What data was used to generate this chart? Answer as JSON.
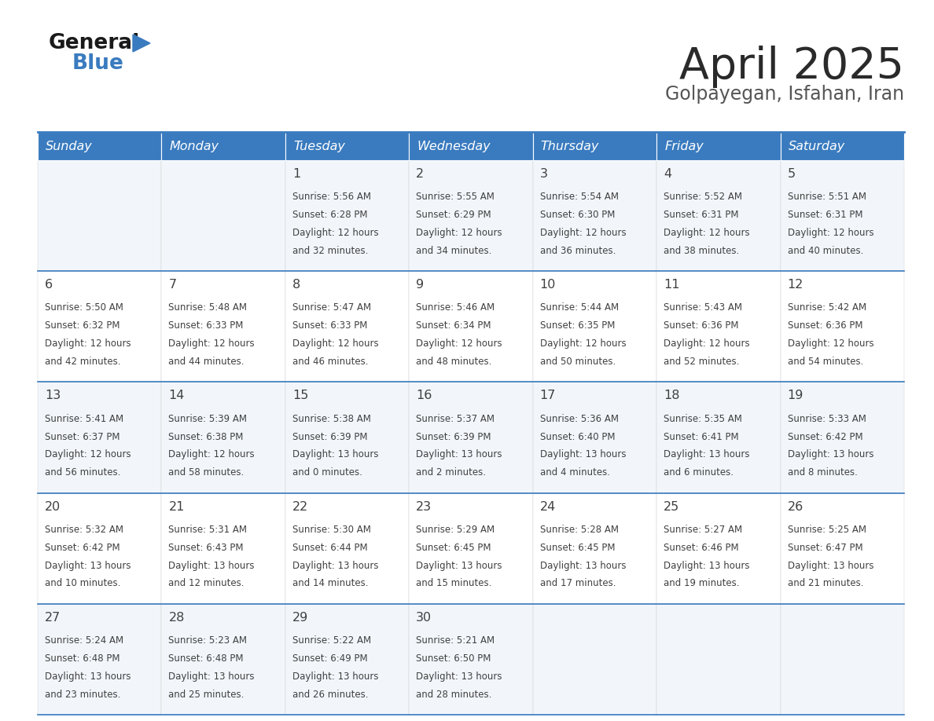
{
  "title": "April 2025",
  "subtitle": "Golpayegan, Isfahan, Iran",
  "days_of_week": [
    "Sunday",
    "Monday",
    "Tuesday",
    "Wednesday",
    "Thursday",
    "Friday",
    "Saturday"
  ],
  "header_bg": "#3a7bbf",
  "header_text": "#ffffff",
  "border_color": "#3a7bbf",
  "text_color": "#404040",
  "title_color": "#2a2a2a",
  "subtitle_color": "#555555",
  "logo_black": "#1a1a1a",
  "logo_blue": "#3a7bbf",
  "row_bg_odd": "#f2f6fb",
  "row_bg_even": "#ffffff",
  "calendar": [
    [
      {
        "day": "",
        "sunrise": "",
        "sunset": "",
        "daylight": ""
      },
      {
        "day": "",
        "sunrise": "",
        "sunset": "",
        "daylight": ""
      },
      {
        "day": "1",
        "sunrise": "5:56 AM",
        "sunset": "6:28 PM",
        "daylight": "12 hours and 32 minutes."
      },
      {
        "day": "2",
        "sunrise": "5:55 AM",
        "sunset": "6:29 PM",
        "daylight": "12 hours and 34 minutes."
      },
      {
        "day": "3",
        "sunrise": "5:54 AM",
        "sunset": "6:30 PM",
        "daylight": "12 hours and 36 minutes."
      },
      {
        "day": "4",
        "sunrise": "5:52 AM",
        "sunset": "6:31 PM",
        "daylight": "12 hours and 38 minutes."
      },
      {
        "day": "5",
        "sunrise": "5:51 AM",
        "sunset": "6:31 PM",
        "daylight": "12 hours and 40 minutes."
      }
    ],
    [
      {
        "day": "6",
        "sunrise": "5:50 AM",
        "sunset": "6:32 PM",
        "daylight": "12 hours and 42 minutes."
      },
      {
        "day": "7",
        "sunrise": "5:48 AM",
        "sunset": "6:33 PM",
        "daylight": "12 hours and 44 minutes."
      },
      {
        "day": "8",
        "sunrise": "5:47 AM",
        "sunset": "6:33 PM",
        "daylight": "12 hours and 46 minutes."
      },
      {
        "day": "9",
        "sunrise": "5:46 AM",
        "sunset": "6:34 PM",
        "daylight": "12 hours and 48 minutes."
      },
      {
        "day": "10",
        "sunrise": "5:44 AM",
        "sunset": "6:35 PM",
        "daylight": "12 hours and 50 minutes."
      },
      {
        "day": "11",
        "sunrise": "5:43 AM",
        "sunset": "6:36 PM",
        "daylight": "12 hours and 52 minutes."
      },
      {
        "day": "12",
        "sunrise": "5:42 AM",
        "sunset": "6:36 PM",
        "daylight": "12 hours and 54 minutes."
      }
    ],
    [
      {
        "day": "13",
        "sunrise": "5:41 AM",
        "sunset": "6:37 PM",
        "daylight": "12 hours and 56 minutes."
      },
      {
        "day": "14",
        "sunrise": "5:39 AM",
        "sunset": "6:38 PM",
        "daylight": "12 hours and 58 minutes."
      },
      {
        "day": "15",
        "sunrise": "5:38 AM",
        "sunset": "6:39 PM",
        "daylight": "13 hours and 0 minutes."
      },
      {
        "day": "16",
        "sunrise": "5:37 AM",
        "sunset": "6:39 PM",
        "daylight": "13 hours and 2 minutes."
      },
      {
        "day": "17",
        "sunrise": "5:36 AM",
        "sunset": "6:40 PM",
        "daylight": "13 hours and 4 minutes."
      },
      {
        "day": "18",
        "sunrise": "5:35 AM",
        "sunset": "6:41 PM",
        "daylight": "13 hours and 6 minutes."
      },
      {
        "day": "19",
        "sunrise": "5:33 AM",
        "sunset": "6:42 PM",
        "daylight": "13 hours and 8 minutes."
      }
    ],
    [
      {
        "day": "20",
        "sunrise": "5:32 AM",
        "sunset": "6:42 PM",
        "daylight": "13 hours and 10 minutes."
      },
      {
        "day": "21",
        "sunrise": "5:31 AM",
        "sunset": "6:43 PM",
        "daylight": "13 hours and 12 minutes."
      },
      {
        "day": "22",
        "sunrise": "5:30 AM",
        "sunset": "6:44 PM",
        "daylight": "13 hours and 14 minutes."
      },
      {
        "day": "23",
        "sunrise": "5:29 AM",
        "sunset": "6:45 PM",
        "daylight": "13 hours and 15 minutes."
      },
      {
        "day": "24",
        "sunrise": "5:28 AM",
        "sunset": "6:45 PM",
        "daylight": "13 hours and 17 minutes."
      },
      {
        "day": "25",
        "sunrise": "5:27 AM",
        "sunset": "6:46 PM",
        "daylight": "13 hours and 19 minutes."
      },
      {
        "day": "26",
        "sunrise": "5:25 AM",
        "sunset": "6:47 PM",
        "daylight": "13 hours and 21 minutes."
      }
    ],
    [
      {
        "day": "27",
        "sunrise": "5:24 AM",
        "sunset": "6:48 PM",
        "daylight": "13 hours and 23 minutes."
      },
      {
        "day": "28",
        "sunrise": "5:23 AM",
        "sunset": "6:48 PM",
        "daylight": "13 hours and 25 minutes."
      },
      {
        "day": "29",
        "sunrise": "5:22 AM",
        "sunset": "6:49 PM",
        "daylight": "13 hours and 26 minutes."
      },
      {
        "day": "30",
        "sunrise": "5:21 AM",
        "sunset": "6:50 PM",
        "daylight": "13 hours and 28 minutes."
      },
      {
        "day": "",
        "sunrise": "",
        "sunset": "",
        "daylight": ""
      },
      {
        "day": "",
        "sunrise": "",
        "sunset": "",
        "daylight": ""
      },
      {
        "day": "",
        "sunrise": "",
        "sunset": "",
        "daylight": ""
      }
    ]
  ]
}
